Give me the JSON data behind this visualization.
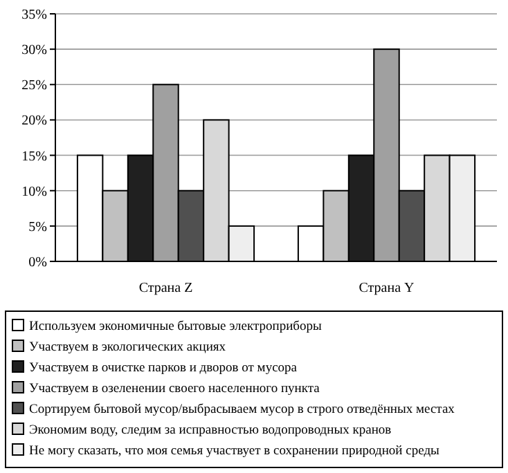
{
  "chart_data": {
    "type": "bar",
    "categories": [
      "Страна Z",
      "Страна Y"
    ],
    "series": [
      {
        "name": "Используем экономичные бытовые электроприборы",
        "color": "#ffffff",
        "values": [
          15,
          5
        ]
      },
      {
        "name": "Участвуем в экологических акциях",
        "color": "#c0c0c0",
        "values": [
          10,
          10
        ]
      },
      {
        "name": "Участвуем в очистке парков и дворов от мусора",
        "color": "#202020",
        "values": [
          15,
          15
        ]
      },
      {
        "name": "Участвуем в озеленении своего населенного пункта",
        "color": "#a0a0a0",
        "values": [
          25,
          30
        ]
      },
      {
        "name": "Сортируем бытовой мусор/выбрасываем мусор в строго отведённых местах",
        "color": "#505050",
        "values": [
          10,
          10
        ]
      },
      {
        "name": "Экономим воду, следим за исправностью водопроводных кранов",
        "color": "#d8d8d8",
        "values": [
          20,
          15
        ]
      },
      {
        "name": "Не могу сказать, что моя семья участвует в сохранении природной среды",
        "color": "#eeeeee",
        "values": [
          5,
          15
        ]
      }
    ],
    "ylim": [
      0,
      35
    ],
    "yticks": [
      {
        "value": 0,
        "label": "0%"
      },
      {
        "value": 5,
        "label": "5%"
      },
      {
        "value": 10,
        "label": "10%"
      },
      {
        "value": 15,
        "label": "15%"
      },
      {
        "value": 20,
        "label": "20%"
      },
      {
        "value": 25,
        "label": "25%"
      },
      {
        "value": 30,
        "label": "30%"
      },
      {
        "value": 35,
        "label": "35%"
      }
    ],
    "grid": "y",
    "legend": "bottom"
  }
}
